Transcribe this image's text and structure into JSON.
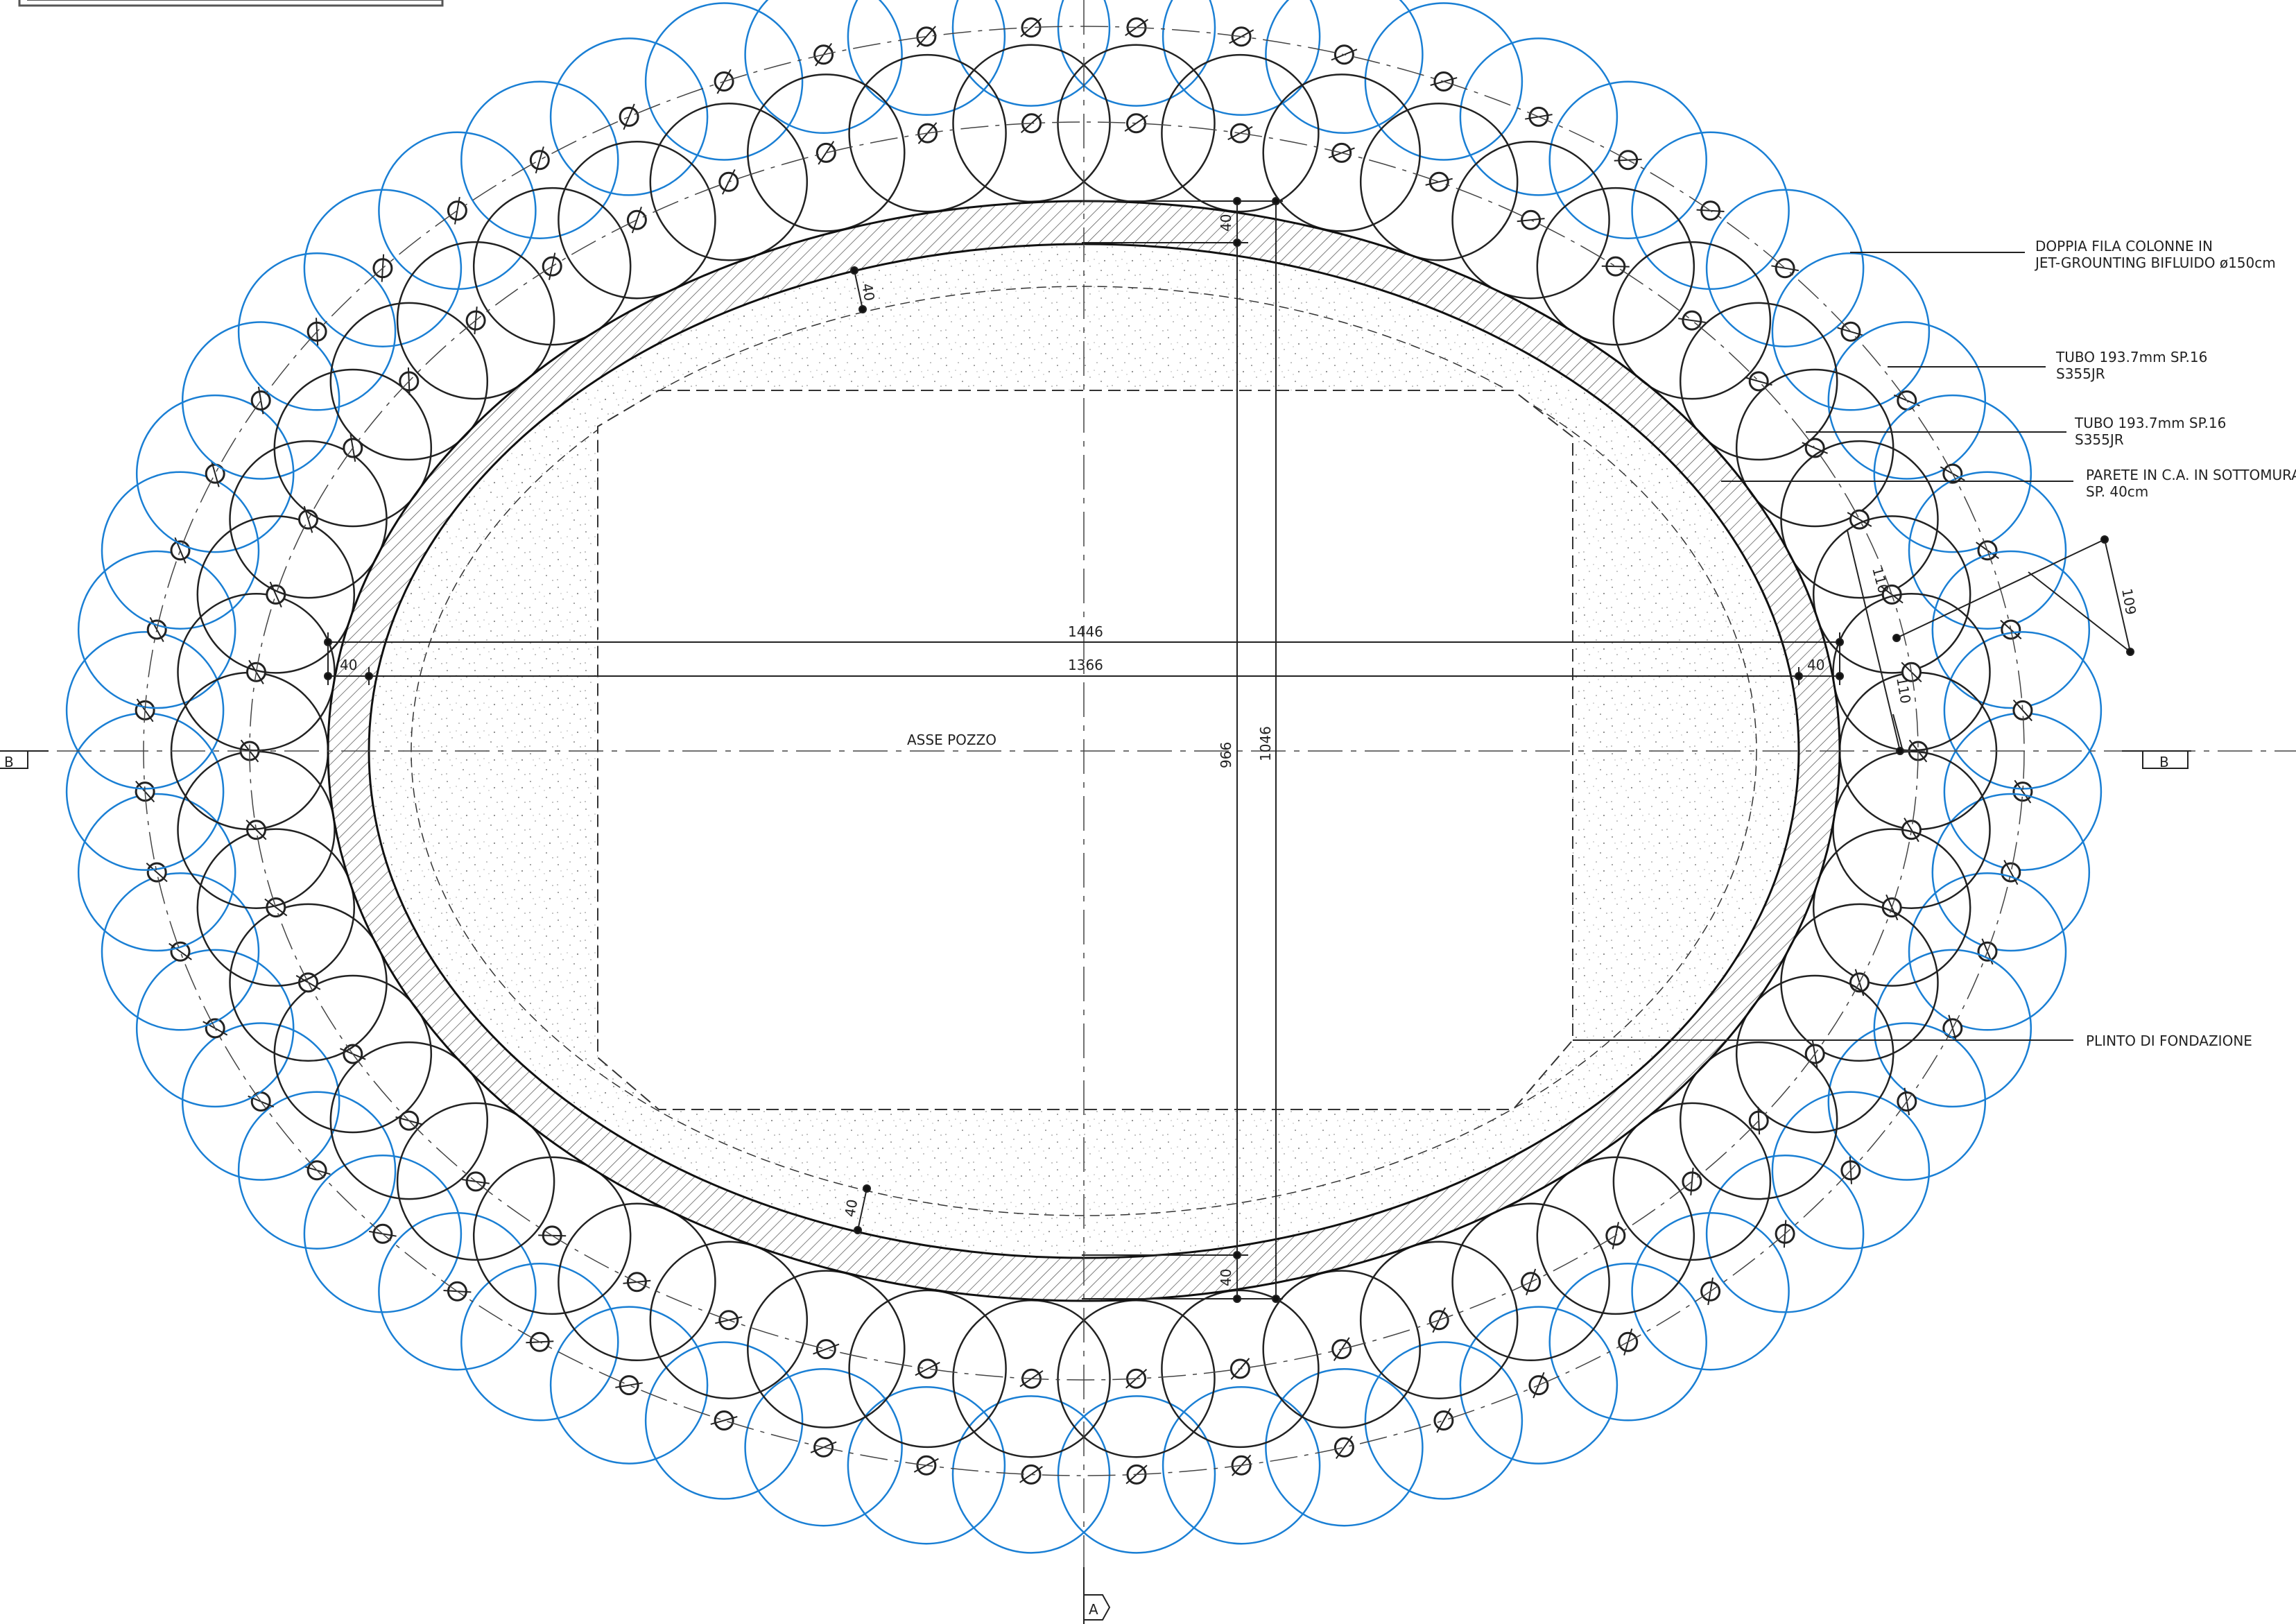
{
  "drawing": {
    "axis_label": "ASSE POZZO",
    "section_mark_b": "B",
    "section_mark_a": "A",
    "dimensions": {
      "outer_width": "1446",
      "inner_width": "1366",
      "inner_height": "966",
      "outer_height": "1046",
      "wall_thickness": "40",
      "column_spacing_1": "110",
      "column_spacing_2": "110",
      "row_offset": "109"
    },
    "annotations": {
      "columns_line1": "DOPPIA FILA COLONNE IN",
      "columns_line2": "JET-GROUNTING BIFLUIDO ø150cm",
      "tube_outer_line1": "TUBO 193.7mm SP.16",
      "tube_outer_line2": "S355JR",
      "tube_inner_line1": "TUBO 193.7mm SP.16",
      "tube_inner_line2": "S355JR",
      "wall_line1": "PARETE IN C.A. IN SOTTOMURAZI",
      "wall_line2": "SP. 40cm",
      "footing": "PLINTO DI FONDAZIONE"
    },
    "colors": {
      "outer_columns": "#1a7fd4",
      "inner_columns": "#222222",
      "lines": "#222222"
    }
  }
}
